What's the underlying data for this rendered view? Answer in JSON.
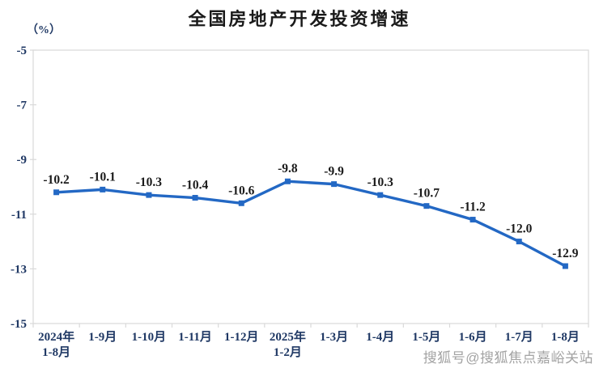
{
  "page": {
    "title": "全国房地产开发投资增速",
    "unit_label": "（%）"
  },
  "watermark": {
    "text": "搜狐号@搜狐焦点嘉峪关站"
  },
  "chart_data": {
    "type": "line",
    "title": "全国房地产开发投资增速",
    "unit": "（%）",
    "xlabel": "",
    "ylabel": "(%)",
    "categories": [
      "2024年\n1-8月",
      "1-9月",
      "1-10月",
      "1-11月",
      "1-12月",
      "2025年\n1-2月",
      "1-3月",
      "1-4月",
      "1-5月",
      "1-6月",
      "1-7月",
      "1-8月"
    ],
    "values": [
      -10.2,
      -10.1,
      -10.3,
      -10.4,
      -10.6,
      -9.8,
      -9.9,
      -10.3,
      -10.7,
      -11.2,
      -12.0,
      -12.9
    ],
    "data_labels": [
      "-10.2",
      "-10.1",
      "-10.3",
      "-10.4",
      "-10.6",
      "-9.8",
      "-9.9",
      "-10.3",
      "-10.7",
      "-11.2",
      "-12.0",
      "-12.9"
    ],
    "ylim": [
      -15,
      -5
    ],
    "yticks": [
      -5,
      -7,
      -9,
      -11,
      -13,
      -15
    ],
    "grid": false,
    "legend": "none",
    "line_color": "#2368C4",
    "marker_shape": "square",
    "axis_color": "#D9D9D9",
    "data_label_color": "#1a1a1a",
    "axis_label_color": "#1F3864",
    "title_color": "#1a1a1a",
    "watermark_color": "#a3a3a3"
  }
}
